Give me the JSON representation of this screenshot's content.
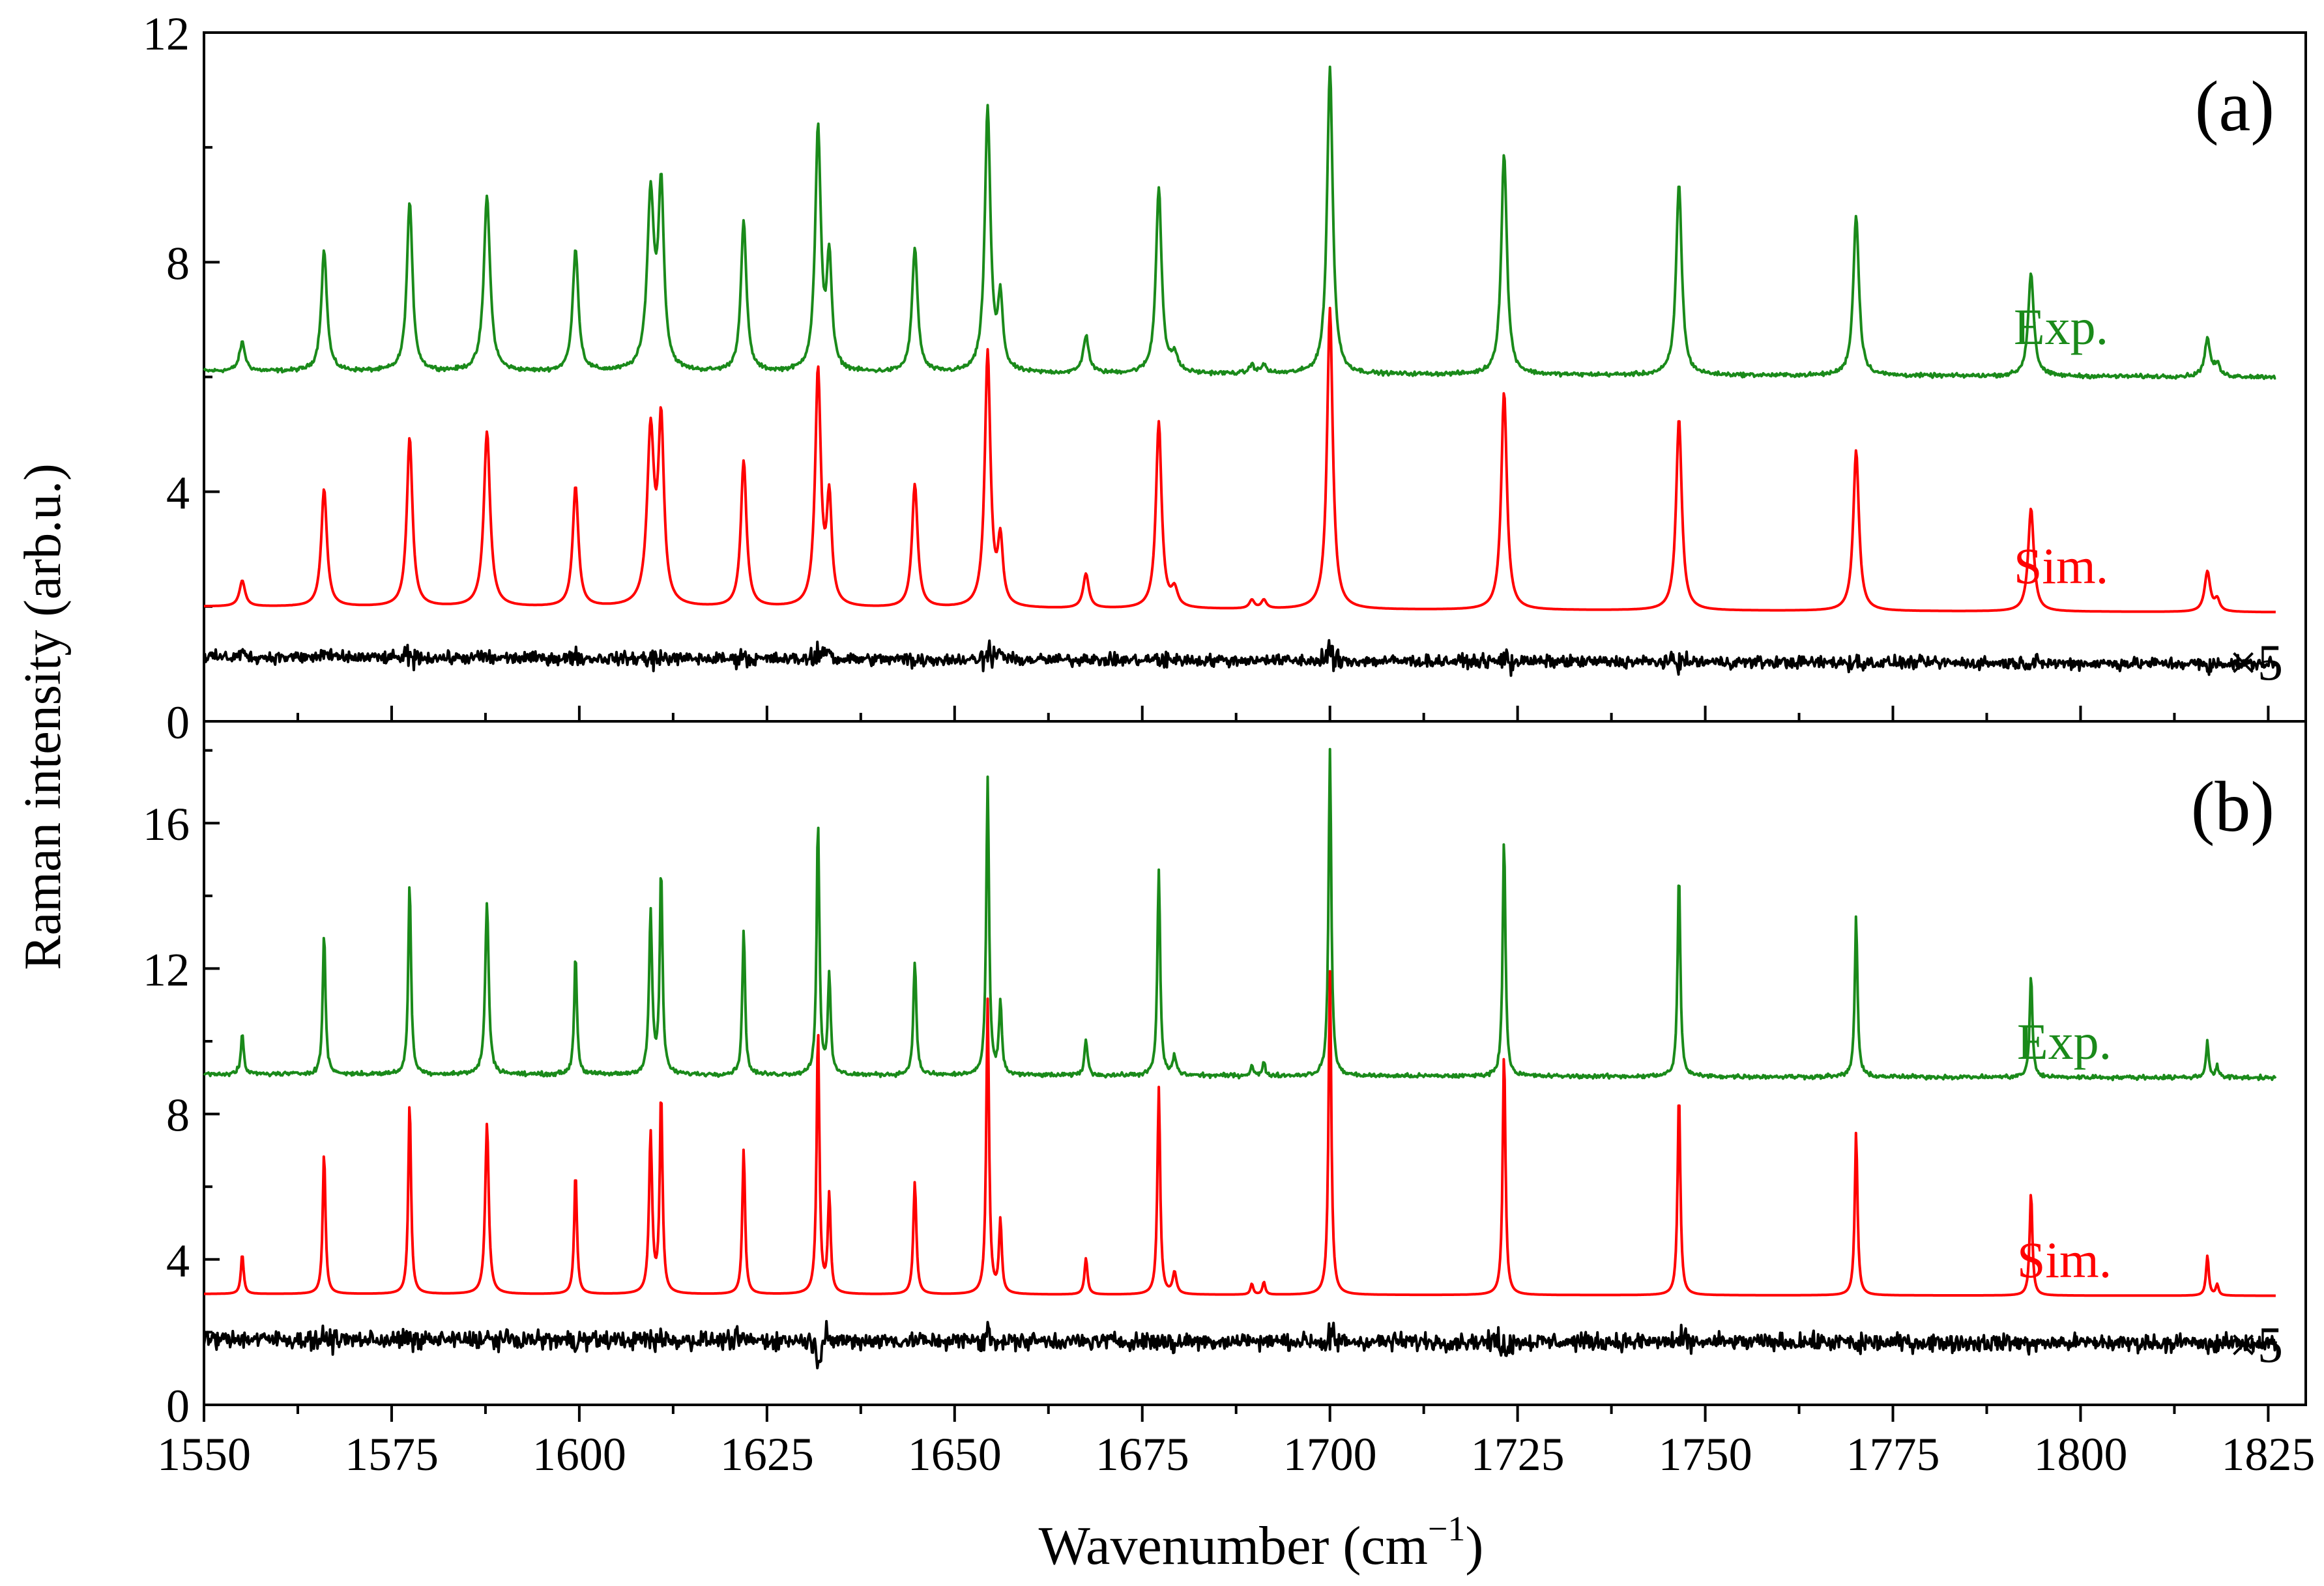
{
  "figure": {
    "ylabel": "Raman intensity (arb.u.)",
    "xlabel_main": "Wavenumber (cm",
    "xlabel_sup": "−1",
    "xlabel_close": ")"
  },
  "colors": {
    "exp": "#1a8a1a",
    "sim": "#ff0000",
    "residual": "#000000",
    "axis": "#000000"
  },
  "chart_data": [
    {
      "type": "line",
      "panel_label": "(a)",
      "xlim": [
        1550,
        1830
      ],
      "ylim": [
        0,
        12
      ],
      "xticks": [
        1550,
        1575,
        1600,
        1625,
        1650,
        1675,
        1700,
        1725,
        1750,
        1775,
        1800,
        1825
      ],
      "yticks": [
        0,
        4,
        8,
        12
      ],
      "peaks": [
        {
          "x": 1555.1,
          "exp": 0.5,
          "sim": 0.45,
          "w": 0.45
        },
        {
          "x": 1566.0,
          "exp": 2.1,
          "sim": 2.05,
          "w": 0.45
        },
        {
          "x": 1577.4,
          "exp": 2.95,
          "sim": 2.95,
          "w": 0.45
        },
        {
          "x": 1587.7,
          "exp": 3.05,
          "sim": 3.05,
          "w": 0.5
        },
        {
          "x": 1599.5,
          "exp": 2.15,
          "sim": 2.1,
          "w": 0.45
        },
        {
          "x": 1609.5,
          "exp": 3.0,
          "sim": 3.0,
          "w": 0.55
        },
        {
          "x": 1610.9,
          "exp": 3.1,
          "sim": 3.1,
          "w": 0.45
        },
        {
          "x": 1621.9,
          "exp": 2.6,
          "sim": 2.55,
          "w": 0.45
        },
        {
          "x": 1631.8,
          "exp": 4.2,
          "sim": 4.1,
          "w": 0.45
        },
        {
          "x": 1633.3,
          "exp": 1.9,
          "sim": 1.8,
          "w": 0.4
        },
        {
          "x": 1644.7,
          "exp": 2.15,
          "sim": 2.15,
          "w": 0.45
        },
        {
          "x": 1654.4,
          "exp": 4.6,
          "sim": 4.45,
          "w": 0.45
        },
        {
          "x": 1656.1,
          "exp": 1.2,
          "sim": 1.1,
          "w": 0.4
        },
        {
          "x": 1667.5,
          "exp": 0.65,
          "sim": 0.6,
          "w": 0.45
        },
        {
          "x": 1677.2,
          "exp": 3.25,
          "sim": 3.25,
          "w": 0.45
        },
        {
          "x": 1679.3,
          "exp": 0.3,
          "sim": 0.3,
          "w": 0.5
        },
        {
          "x": 1689.6,
          "exp": 0.15,
          "sim": 0.15,
          "w": 0.4
        },
        {
          "x": 1691.2,
          "exp": 0.15,
          "sim": 0.15,
          "w": 0.4
        },
        {
          "x": 1700.0,
          "exp": 5.35,
          "sim": 5.25,
          "w": 0.45
        },
        {
          "x": 1723.2,
          "exp": 3.85,
          "sim": 3.8,
          "w": 0.45
        },
        {
          "x": 1746.5,
          "exp": 3.35,
          "sim": 3.35,
          "w": 0.45
        },
        {
          "x": 1770.1,
          "exp": 2.8,
          "sim": 2.8,
          "w": 0.45
        },
        {
          "x": 1793.4,
          "exp": 1.8,
          "sim": 1.8,
          "w": 0.45
        },
        {
          "x": 1816.9,
          "exp": 0.65,
          "sim": 0.7,
          "w": 0.45
        },
        {
          "x": 1818.2,
          "exp": 0.2,
          "sim": 0.2,
          "w": 0.4
        }
      ],
      "series": [
        {
          "name": "Exp.",
          "baseline": 6.1,
          "baseline_end": 6.0,
          "noise": 0.03
        },
        {
          "name": "Sim.",
          "baseline": 2.0,
          "baseline_end": 1.9,
          "noise": 0
        },
        {
          "name": "×5",
          "baseline": 1.12,
          "baseline_end": 1.0,
          "noise": 0.09
        }
      ]
    },
    {
      "type": "line",
      "panel_label": "(b)",
      "xlim": [
        1550,
        1830
      ],
      "ylim": [
        0,
        18.8
      ],
      "xticks": [
        1550,
        1575,
        1600,
        1625,
        1650,
        1675,
        1700,
        1725,
        1750,
        1775,
        1800,
        1825
      ],
      "yticks": [
        0,
        4,
        8,
        12,
        16
      ],
      "peaks": [
        {
          "x": 1555.1,
          "exp": 1.1,
          "sim": 1.1,
          "w": 0.22
        },
        {
          "x": 1566.0,
          "exp": 3.9,
          "sim": 3.9,
          "w": 0.22
        },
        {
          "x": 1577.4,
          "exp": 5.3,
          "sim": 5.3,
          "w": 0.22
        },
        {
          "x": 1587.7,
          "exp": 4.7,
          "sim": 4.7,
          "w": 0.28
        },
        {
          "x": 1599.5,
          "exp": 3.3,
          "sim": 3.35,
          "w": 0.22
        },
        {
          "x": 1609.5,
          "exp": 4.4,
          "sim": 4.4,
          "w": 0.25
        },
        {
          "x": 1610.9,
          "exp": 5.6,
          "sim": 5.5,
          "w": 0.22
        },
        {
          "x": 1621.9,
          "exp": 4.0,
          "sim": 4.0,
          "w": 0.22
        },
        {
          "x": 1631.8,
          "exp": 7.0,
          "sim": 7.3,
          "w": 0.22
        },
        {
          "x": 1633.3,
          "exp": 2.7,
          "sim": 2.7,
          "w": 0.22
        },
        {
          "x": 1644.7,
          "exp": 3.1,
          "sim": 3.1,
          "w": 0.24
        },
        {
          "x": 1654.4,
          "exp": 8.2,
          "sim": 8.1,
          "w": 0.22
        },
        {
          "x": 1656.1,
          "exp": 2.0,
          "sim": 2.0,
          "w": 0.22
        },
        {
          "x": 1667.5,
          "exp": 1.0,
          "sim": 1.0,
          "w": 0.24
        },
        {
          "x": 1677.2,
          "exp": 5.7,
          "sim": 5.7,
          "w": 0.22
        },
        {
          "x": 1679.3,
          "exp": 0.5,
          "sim": 0.6,
          "w": 0.3
        },
        {
          "x": 1689.6,
          "exp": 0.3,
          "sim": 0.3,
          "w": 0.22
        },
        {
          "x": 1691.2,
          "exp": 0.35,
          "sim": 0.35,
          "w": 0.22
        },
        {
          "x": 1700.0,
          "exp": 8.95,
          "sim": 8.9,
          "w": 0.22
        },
        {
          "x": 1723.2,
          "exp": 6.6,
          "sim": 6.7,
          "w": 0.22
        },
        {
          "x": 1746.5,
          "exp": 5.6,
          "sim": 5.6,
          "w": 0.22
        },
        {
          "x": 1770.1,
          "exp": 4.4,
          "sim": 4.5,
          "w": 0.22
        },
        {
          "x": 1793.4,
          "exp": 2.8,
          "sim": 2.85,
          "w": 0.22
        },
        {
          "x": 1816.9,
          "exp": 1.0,
          "sim": 1.1,
          "w": 0.22
        },
        {
          "x": 1818.2,
          "exp": 0.3,
          "sim": 0.3,
          "w": 0.22
        }
      ],
      "series": [
        {
          "name": "Exp.",
          "baseline": 9.1,
          "baseline_end": 9.0,
          "noise": 0.05
        },
        {
          "name": "Sim.",
          "baseline": 3.05,
          "baseline_end": 3.0,
          "noise": 0
        },
        {
          "name": "×5",
          "baseline": 1.8,
          "baseline_end": 1.7,
          "noise": 0.2
        }
      ]
    }
  ]
}
